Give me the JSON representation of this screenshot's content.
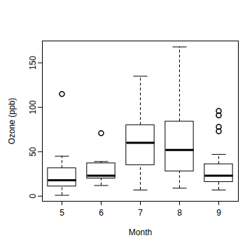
{
  "chart_data": {
    "type": "boxplot",
    "x_label": "Month",
    "y_label": "Ozone (ppb)",
    "categories": [
      "5",
      "6",
      "7",
      "8",
      "9"
    ],
    "boxes": [
      {
        "whisker_low": 1,
        "q1": 11,
        "median": 18,
        "q3": 31.5,
        "whisker_high": 45,
        "outliers": [
          115
        ]
      },
      {
        "whisker_low": 12,
        "q1": 20,
        "median": 23,
        "q3": 37,
        "whisker_high": 39,
        "outliers": [
          71
        ]
      },
      {
        "whisker_low": 7,
        "q1": 35,
        "median": 60,
        "q3": 80,
        "whisker_high": 135,
        "outliers": []
      },
      {
        "whisker_low": 9,
        "q1": 28,
        "median": 52,
        "q3": 84,
        "whisker_high": 168,
        "outliers": []
      },
      {
        "whisker_low": 7,
        "q1": 16,
        "median": 23,
        "q3": 36,
        "whisker_high": 47,
        "outliers": [
          73,
          78,
          91,
          96
        ]
      }
    ],
    "color": "#000000",
    "ylim": [
      -5.7,
      174.7
    ],
    "yticks": [
      0,
      50,
      100,
      150
    ],
    "grid": false
  }
}
